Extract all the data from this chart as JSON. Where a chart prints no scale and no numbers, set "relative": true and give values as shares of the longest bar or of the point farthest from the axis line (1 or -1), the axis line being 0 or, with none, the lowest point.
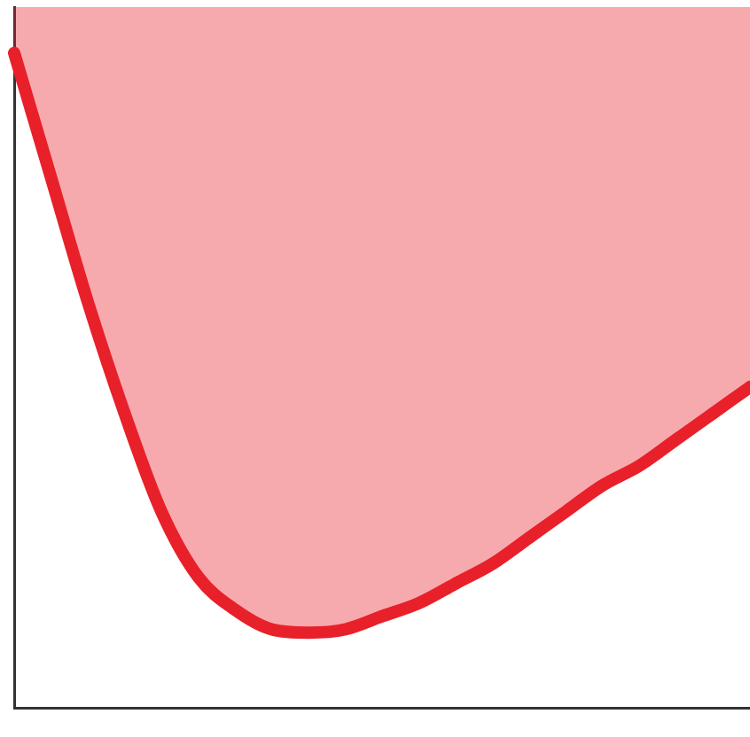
{
  "chart_data": {
    "type": "area",
    "relative": true,
    "categories": [
      null,
      null,
      null,
      null,
      null,
      null,
      null,
      null,
      null,
      null,
      null,
      null,
      null,
      null,
      null,
      null,
      null,
      null,
      null,
      null,
      null
    ],
    "series": [
      {
        "color": "#e8202a",
        "values": [
          1,
          0.81,
          0.62,
          0.45,
          0.3,
          0.2,
          0.15,
          0.12,
          0.115,
          0.12,
          0.14,
          0.16,
          0.19,
          0.22,
          0.26,
          0.3,
          0.34,
          0.37,
          0.41,
          0.45,
          0.49
        ]
      }
    ],
    "grid": false,
    "legend": false,
    "marker": "none",
    "line_style": "solid"
  }
}
